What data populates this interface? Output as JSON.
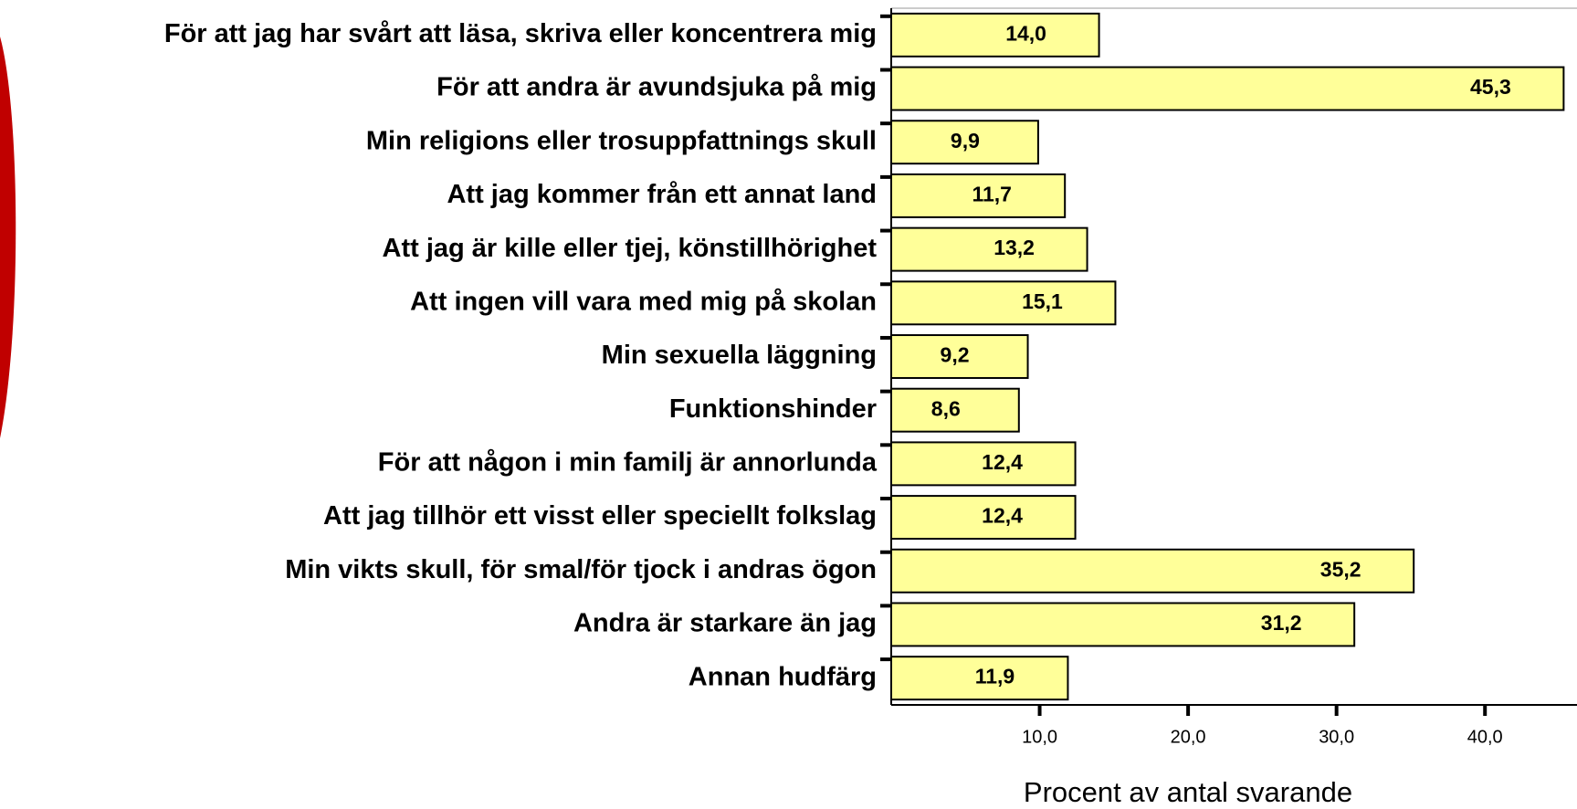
{
  "chart_data": {
    "type": "bar",
    "orientation": "horizontal",
    "categories": [
      "För att jag har svårt att läsa, skriva eller koncentrera mig",
      "För att andra är avundsjuka på mig",
      "Min religions eller trosuppfattnings skull",
      "Att jag kommer från ett annat land",
      "Att jag är kille eller tjej, könstillhörighet",
      "Att ingen vill vara med mig på skolan",
      "Min sexuella läggning",
      "Funktionshinder",
      "För att någon i min familj är annorlunda",
      "Att jag tillhör ett visst eller speciellt folkslag",
      "Min vikts skull, för smal/för tjock i andras ögon",
      "Andra är starkare än jag",
      "Annan hudfärg"
    ],
    "values": [
      14.0,
      45.3,
      9.9,
      11.7,
      13.2,
      15.1,
      9.2,
      8.6,
      12.4,
      12.4,
      35.2,
      31.2,
      11.9
    ],
    "value_labels": [
      "14,0",
      "45,3",
      "9,9",
      "11,7",
      "13,2",
      "15,1",
      "9,2",
      "8,6",
      "12,4",
      "12,4",
      "35,2",
      "31,2",
      "11,9"
    ],
    "color": "#ffff99",
    "xlim": [
      0,
      46.2
    ],
    "xticks": [
      {
        "value": 10,
        "label": "10,0"
      },
      {
        "value": 20,
        "label": "20,0"
      },
      {
        "value": 30,
        "label": "30,0"
      },
      {
        "value": 40,
        "label": "40,0"
      }
    ],
    "xlabel": "Procent av antal svarande"
  }
}
